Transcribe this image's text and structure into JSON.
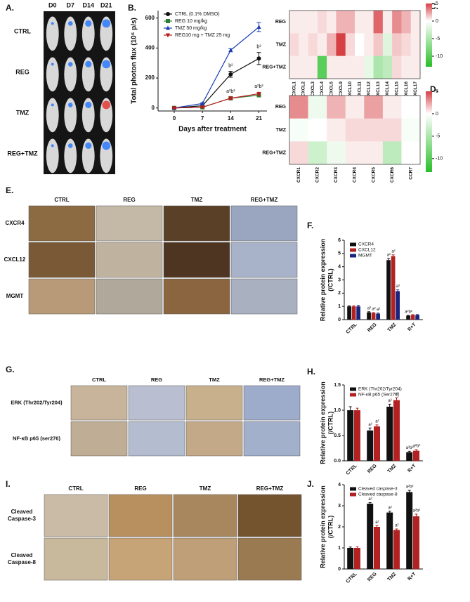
{
  "image_panels": [
    {
      "panel": "A.",
      "columns": [
        "D0",
        "D7",
        "D14",
        "D21"
      ],
      "rows": [
        "CTRL",
        "REG",
        "TMZ",
        "REG+TMZ"
      ]
    },
    {
      "panel": "E.",
      "columns": [
        "CTRL",
        "REG",
        "TMZ",
        "REG+TMZ"
      ],
      "rows": [
        "CXCR4",
        "CXCL12",
        "MGMT"
      ]
    },
    {
      "panel": "G.",
      "columns": [
        "CTRL",
        "REG",
        "TMZ",
        "REG+TMZ"
      ],
      "rows": [
        "ERK (Thr202/Tyr204)",
        "NF-κB p65 (ser276)"
      ]
    },
    {
      "panel": "I.",
      "columns": [
        "CTRL",
        "REG",
        "TMZ",
        "REG+TMZ"
      ],
      "rows": [
        [
          "Cleaved",
          "Caspase-3"
        ],
        [
          "Cleaved",
          "Caspase-8"
        ]
      ]
    }
  ],
  "chart_data": [
    {
      "type": "line",
      "panel": "B.",
      "ylabel": "Total photon flux (10⁶ p/s)",
      "xlabel": "Days after treatment",
      "x": [
        0,
        7,
        14,
        21
      ],
      "xlim": [
        -4,
        23
      ],
      "xticks": [
        0,
        7,
        14,
        21
      ],
      "ylim": [
        -20,
        650
      ],
      "yticks": [
        0,
        200,
        400,
        600
      ],
      "series": [
        {
          "name": "CTRL (0.1% DMSO)",
          "color": "#111111",
          "marker": "circle",
          "values": [
            0,
            15,
            225,
            330
          ],
          "errors": [
            5,
            5,
            20,
            40
          ],
          "notes": [
            null,
            null,
            "b²",
            "b²"
          ]
        },
        {
          "name": "REG 10 mg/kg",
          "color": "#2e7d32",
          "marker": "square",
          "values": [
            0,
            5,
            65,
            85
          ],
          "errors": [
            3,
            3,
            8,
            10
          ],
          "notes": [
            null,
            null,
            null,
            null
          ]
        },
        {
          "name": "TMZ 50 mg/kg",
          "color": "#1a3fb5",
          "marker": "triangle",
          "values": [
            0,
            30,
            385,
            540
          ],
          "errors": [
            3,
            5,
            10,
            30
          ],
          "notes": [
            null,
            null,
            null,
            null
          ]
        },
        {
          "name": "REG10 mg + TMZ 25 mg",
          "color": "#b71c1c",
          "marker": "down-triangle",
          "values": [
            0,
            5,
            65,
            95
          ],
          "errors": [
            3,
            3,
            8,
            10
          ],
          "notes": [
            null,
            null,
            "a²b²",
            "a²b²"
          ]
        }
      ]
    },
    {
      "type": "heatmap",
      "panel": "C.",
      "rows": [
        "REG",
        "TMZ",
        "REG+TMZ"
      ],
      "columns": [
        "CXCL1",
        "CXCL2",
        "CXCL3",
        "CXCL4",
        "CXCL5",
        "CXCL9",
        "CXCL10",
        "CXCL11",
        "CXCL12",
        "CXCL13",
        "CXCL14",
        "CXCL15",
        "CXCL16",
        "CXCL17"
      ],
      "values": [
        [
          0.5,
          0.5,
          0.5,
          1,
          0.5,
          2,
          2,
          0.5,
          0.5,
          4,
          0.5,
          3,
          2,
          0.5
        ],
        [
          1,
          0.5,
          1,
          0.5,
          2,
          5,
          1,
          0,
          0.5,
          1.5,
          -2,
          1.5,
          1,
          0.5
        ],
        [
          0.5,
          0.5,
          0.5,
          -10,
          0.5,
          0.5,
          0.5,
          0.5,
          -1.5,
          -5,
          -4,
          1,
          0.5,
          0.5
        ]
      ],
      "clim": [
        -13,
        5
      ],
      "cticks": [
        5,
        0,
        -5,
        -10
      ]
    },
    {
      "type": "heatmap",
      "panel": "D.",
      "rows": [
        "REG",
        "TMZ",
        "REG+TMZ"
      ],
      "columns": [
        "CXCR1",
        "CXCR2",
        "CXCR3",
        "CXCR4",
        "CXCR5",
        "CXCR6",
        "CCR7"
      ],
      "values": [
        [
          3,
          -1,
          2,
          0.5,
          2.5,
          0.5,
          0
        ],
        [
          -0.5,
          0,
          0.5,
          1,
          1,
          1,
          -0.5
        ],
        [
          1,
          -3,
          -1,
          0.5,
          0.5,
          -4,
          0
        ]
      ],
      "clim": [
        -13,
        5
      ],
      "cticks": [
        5,
        0,
        -5,
        -10
      ]
    },
    {
      "type": "bar",
      "panel": "F.",
      "ylabel": [
        "Relative protein expression",
        "(/CTRL)"
      ],
      "categories": [
        "CTRL",
        "REG",
        "TMZ",
        "R+T"
      ],
      "ylim": [
        0,
        6
      ],
      "yticks": [
        0,
        1,
        2,
        3,
        4,
        5,
        6
      ],
      "series": [
        {
          "name": "CXCR4",
          "color": "#111111",
          "values": [
            1,
            0.55,
            4.5,
            0.3
          ],
          "errors": [
            0.05,
            0.05,
            0.12,
            0.03
          ],
          "notes": [
            null,
            "a²",
            "a²",
            "a²b²"
          ]
        },
        {
          "name": "CXCL12",
          "color": "#b22222",
          "values": [
            1,
            0.5,
            4.8,
            0.35
          ],
          "errors": [
            0.05,
            0.04,
            0.1,
            0.03
          ],
          "notes": [
            null,
            "a²",
            "a²",
            null
          ]
        },
        {
          "name": "MGMT",
          "color": "#1a237e",
          "values": [
            1,
            0.45,
            2.15,
            0.35
          ],
          "errors": [
            0.08,
            0.05,
            0.1,
            0.03
          ],
          "notes": [
            null,
            "a²",
            "a²",
            null
          ]
        }
      ]
    },
    {
      "type": "bar",
      "panel": "H.",
      "ylabel": [
        "Relative protein expression",
        "(/CTRL)"
      ],
      "categories": [
        "CTRL",
        "REG",
        "TMZ",
        "R+T"
      ],
      "ylim": [
        0,
        1.5
      ],
      "yticks": [
        {
          "value": 0,
          "label": "0.0"
        },
        0.5,
        {
          "value": 1,
          "label": "1.0"
        },
        1.5
      ],
      "series": [
        {
          "name": "ERK (Thr202/Tyr204)",
          "color": "#111111",
          "values": [
            1,
            0.6,
            1.07,
            0.17
          ],
          "errors": [
            0.07,
            0.05,
            0.05,
            0.02
          ],
          "notes": [
            null,
            "a²",
            "a²",
            "a²b²"
          ]
        },
        {
          "name": "NF-κB p65 (Ser276)",
          "color": "#b22222",
          "values": [
            1,
            0.68,
            1.2,
            0.2
          ],
          "errors": [
            0.04,
            0.03,
            0.05,
            0.02
          ],
          "notes": [
            null,
            "a²",
            "a²",
            "a²b²"
          ]
        }
      ]
    },
    {
      "type": "bar",
      "panel": "J.",
      "ylabel": [
        "Relative protein expression",
        "(/CTRL)"
      ],
      "categories": [
        "CTRL",
        "REG",
        "TMZ",
        "R+T"
      ],
      "ylim": [
        0,
        4
      ],
      "yticks": [
        0,
        1,
        2,
        3,
        4
      ],
      "series": [
        {
          "name": "Cleaved caspase-3",
          "color": "#111111",
          "values": [
            1,
            3.1,
            2.68,
            3.65
          ],
          "errors": [
            0.04,
            0.05,
            0.06,
            0.08
          ],
          "notes": [
            null,
            "a²",
            "a²",
            "a²b²"
          ]
        },
        {
          "name": "Cleaved caspase-8",
          "color": "#b22222",
          "values": [
            1,
            2.0,
            1.85,
            2.5
          ],
          "errors": [
            0.05,
            0.06,
            0.05,
            0.1
          ],
          "notes": [
            null,
            "a²",
            "a²",
            "a²b²"
          ]
        }
      ]
    }
  ]
}
